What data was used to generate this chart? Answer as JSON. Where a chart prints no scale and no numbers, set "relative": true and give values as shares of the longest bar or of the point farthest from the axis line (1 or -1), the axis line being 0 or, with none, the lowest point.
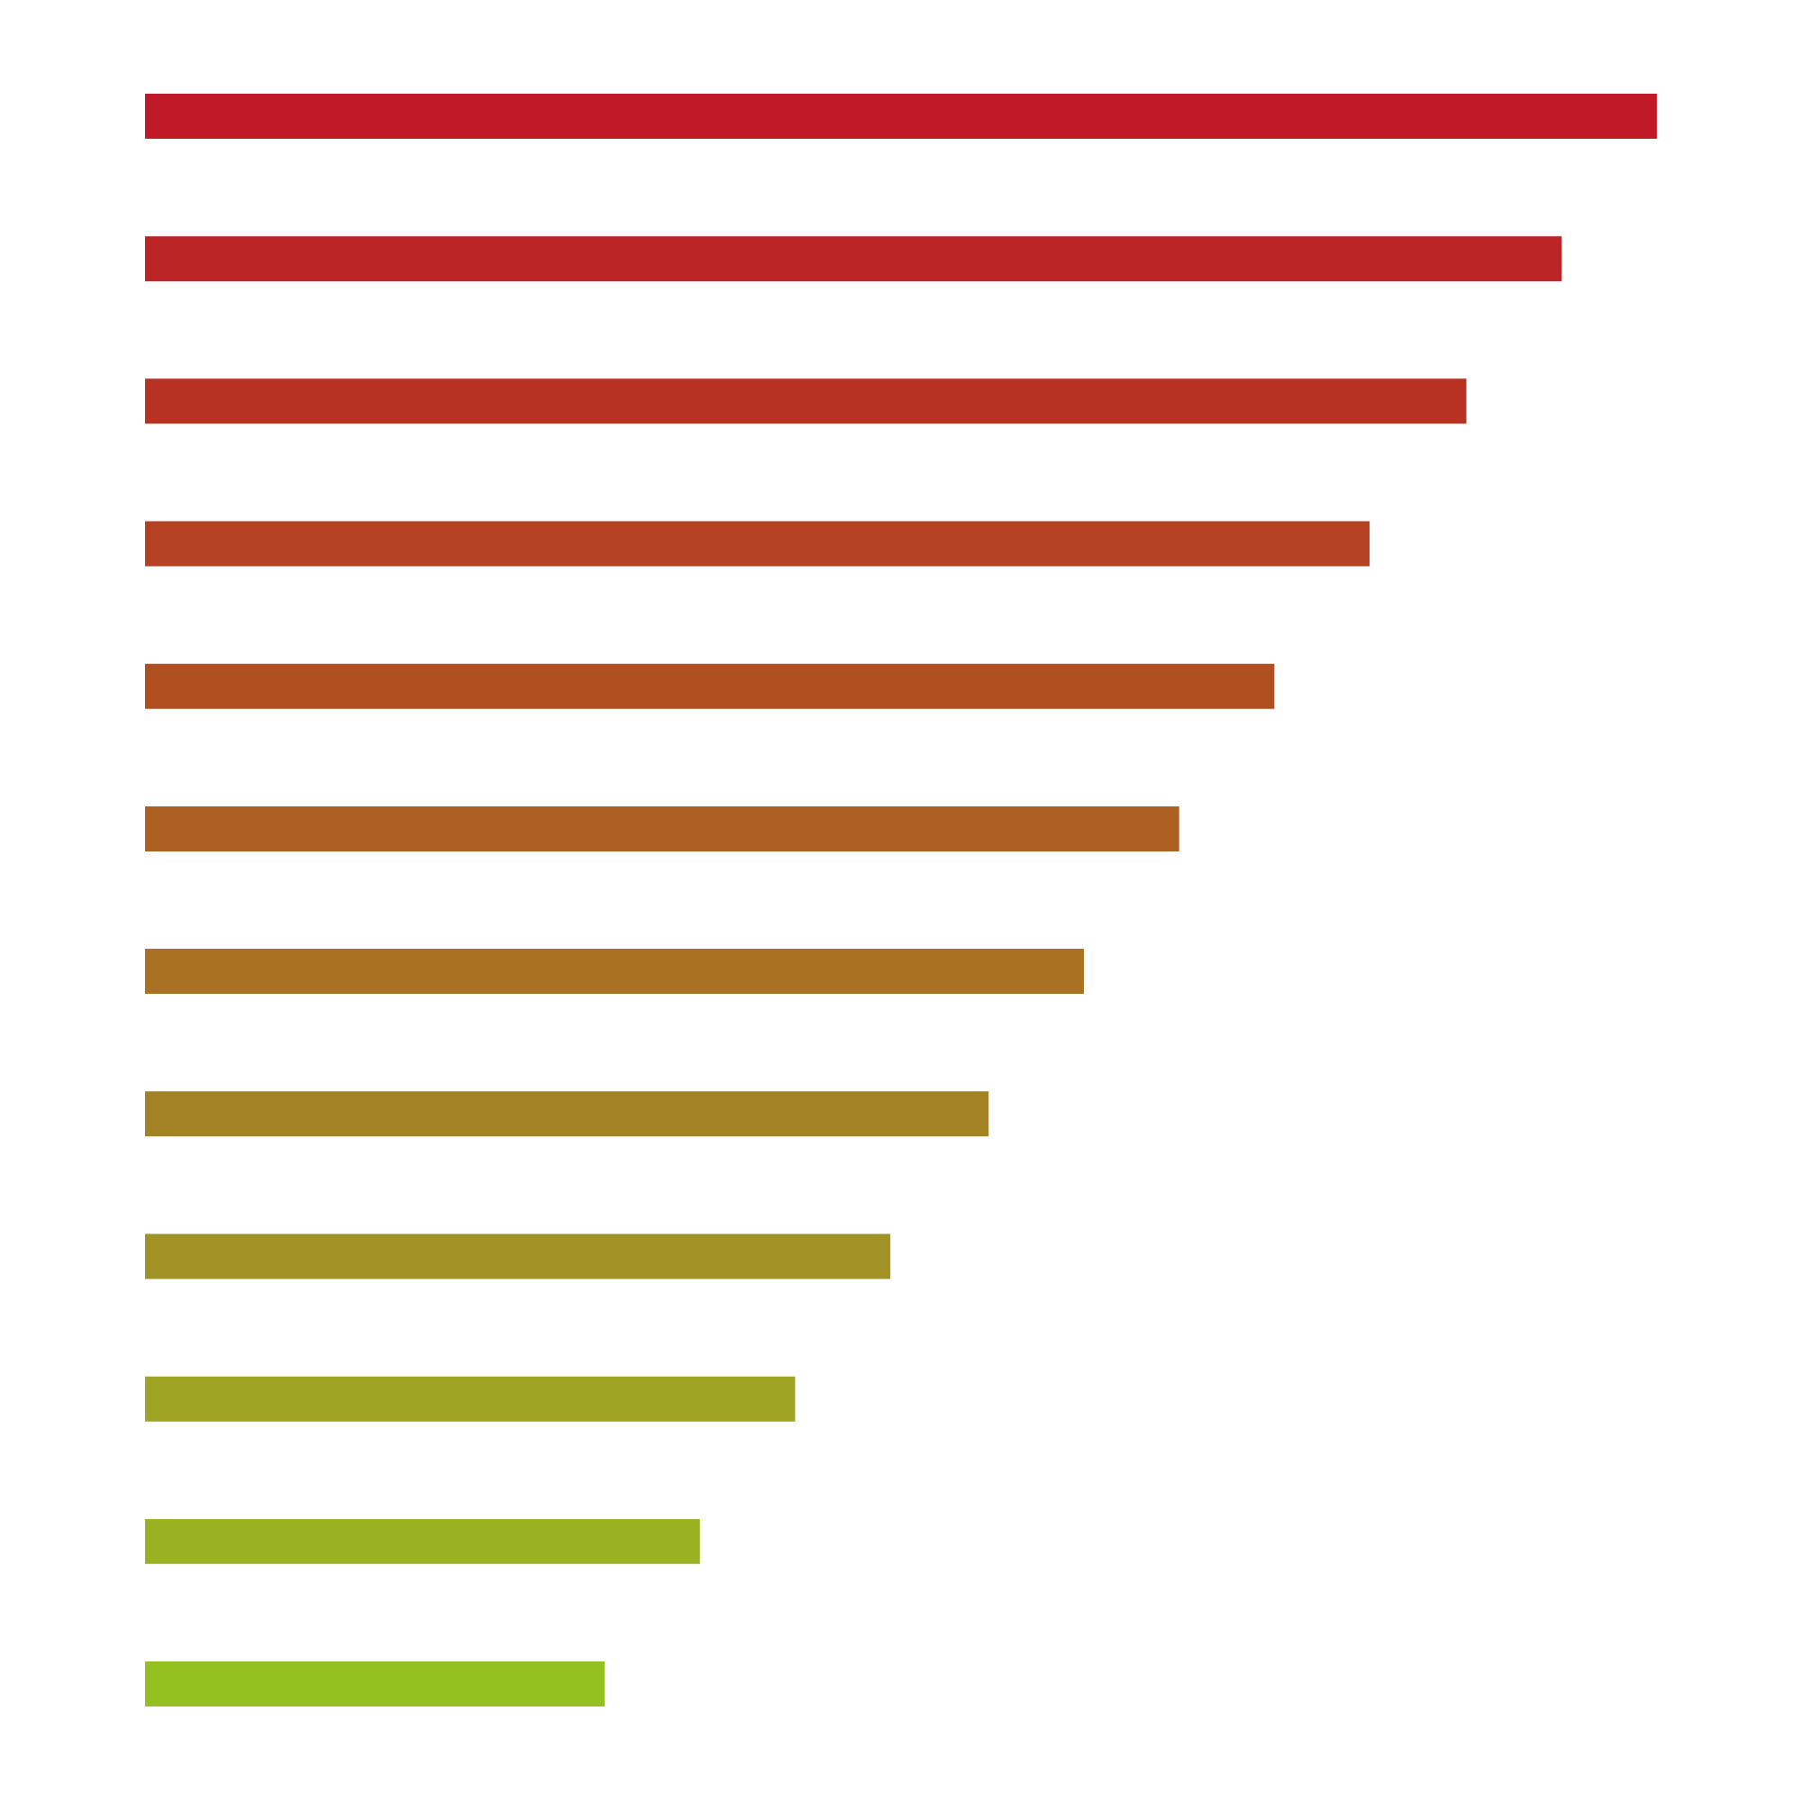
{
  "chart_data": {
    "type": "bar",
    "orientation": "horizontal",
    "relative": true,
    "categories": [
      null,
      null,
      null,
      null,
      null,
      null,
      null,
      null,
      null,
      null,
      null,
      null
    ],
    "values": [
      1,
      0.937,
      0.874,
      0.81,
      0.747,
      0.684,
      0.621,
      0.558,
      0.493,
      0.43,
      0.367,
      0.304
    ],
    "colors": [
      "#c01927",
      "#bb2525",
      "#b83223",
      "#b44222",
      "#b05021",
      "#ac6022",
      "#a87222",
      "#a38224",
      "#a09225",
      "#9ea323",
      "#9ab222",
      "#94c120"
    ]
  }
}
